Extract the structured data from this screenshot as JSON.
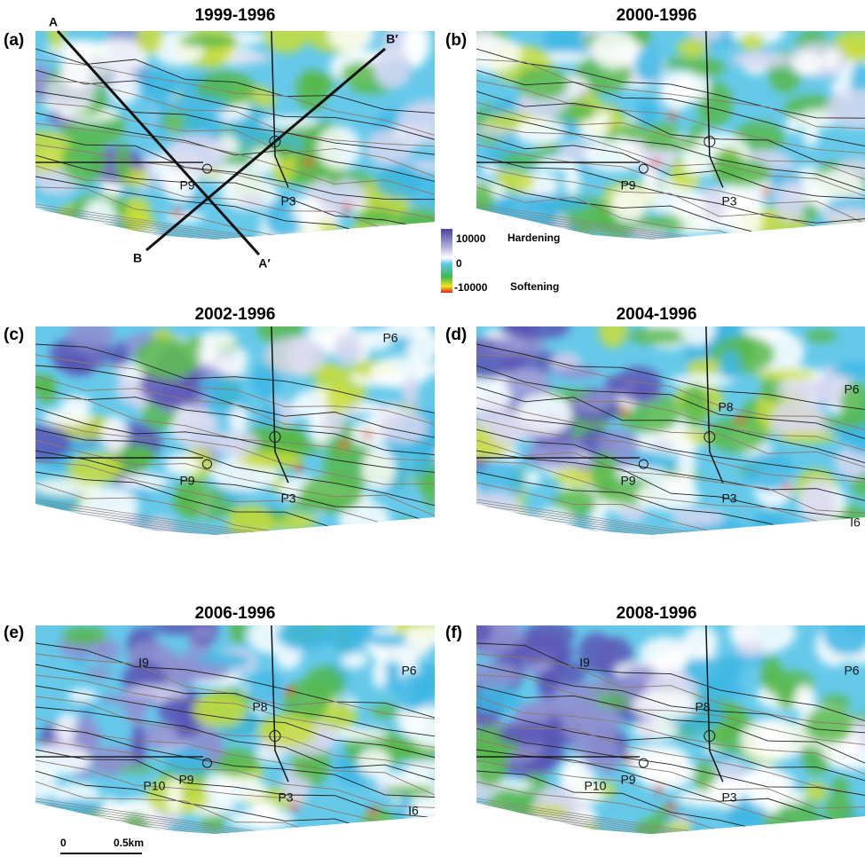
{
  "panels": [
    {
      "label": "(a)",
      "title": "1999-1996",
      "annotations": [
        "A",
        "A′",
        "B",
        "B′",
        "P9",
        "P3"
      ]
    },
    {
      "label": "(b)",
      "title": "2000-1996",
      "annotations": [
        "P9",
        "P3"
      ]
    },
    {
      "label": "(c)",
      "title": "2002-1996",
      "annotations": [
        "P6",
        "P9",
        "P3"
      ]
    },
    {
      "label": "(d)",
      "title": "2004-1996",
      "annotations": [
        "P6",
        "P8",
        "P9",
        "P3",
        "I6"
      ]
    },
    {
      "label": "(e)",
      "title": "2006-1996",
      "annotations": [
        "I9",
        "P6",
        "P8",
        "P10",
        "P9",
        "P3",
        "I6"
      ]
    },
    {
      "label": "(f)",
      "title": "2008-1996",
      "annotations": [
        "I9",
        "P6",
        "P8",
        "P10",
        "P9",
        "P3"
      ]
    }
  ],
  "legend": {
    "max": 10000,
    "max_label": "Hardening",
    "mid": 0,
    "min": -10000,
    "min_label": "Softening"
  },
  "scale_bar": {
    "start": "0",
    "end": "0.5km"
  }
}
